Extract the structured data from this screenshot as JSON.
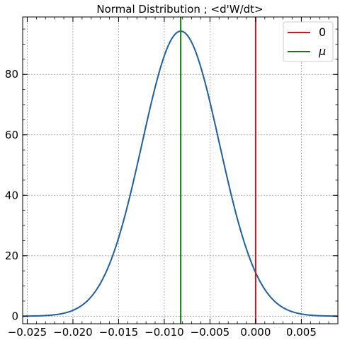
{
  "chart_data": {
    "type": "line",
    "title": "Normal Distribution ; <d'W/dt>",
    "xlabel": "",
    "ylabel": "",
    "xlim": [
      -0.0255,
      0.009
    ],
    "ylim": [
      -2.5,
      99
    ],
    "xticks": [
      -0.025,
      -0.02,
      -0.015,
      -0.01,
      -0.005,
      0.0,
      0.005
    ],
    "xtick_labels": [
      "−0.025",
      "−0.020",
      "−0.015",
      "−0.010",
      "−0.005",
      "0.000",
      "0.005"
    ],
    "yticks": [
      0,
      20,
      40,
      60,
      80
    ],
    "ytick_labels": [
      "0",
      "20",
      "40",
      "60",
      "80"
    ],
    "grid": true,
    "legend_position": "top-right",
    "series": [
      {
        "kind": "curve",
        "color": "#1f5fa0",
        "distribution": "normal",
        "mean": -0.0082,
        "std": 0.00423,
        "peak": 94.3
      },
      {
        "kind": "vline",
        "name": "0",
        "x": 0.0,
        "color": "#dd1111"
      },
      {
        "kind": "vline",
        "name": "μ",
        "x": -0.0082,
        "color": "#117a11"
      }
    ]
  }
}
